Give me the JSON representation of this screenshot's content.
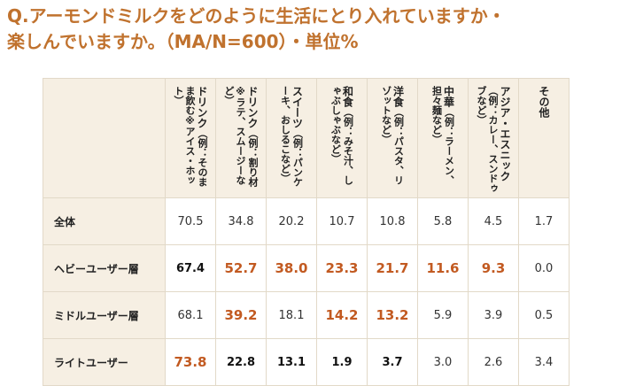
{
  "header": {
    "title_lines": [
      "Q.アーモンドミルクをどのように生活にとり入れていますか・",
      "楽しんでいますか。（MA/N=600）・単位%"
    ]
  },
  "table": {
    "columns": [
      {
        "name": "ドリンク",
        "example": "（例：そのまま飲む※アイス・ホット）"
      },
      {
        "name": "ドリンク",
        "example": "（例：割り材※ラテ、スムージーなど）"
      },
      {
        "name": "スイーツ",
        "example": "（例：パンケーキ、おしるこなど）"
      },
      {
        "name": "和食",
        "example": "（例：みそ汁、しゃぶしゃぶなど）"
      },
      {
        "name": "洋食",
        "example": "（例：パスタ、リゾットなど）"
      },
      {
        "name": "中華",
        "example": "（例：ラーメン、担々麺など）"
      },
      {
        "name": "アジア・エスニック",
        "example": "（例：カレー、スンドゥブなど）"
      },
      {
        "name": "その他",
        "example": ""
      }
    ],
    "rows": [
      {
        "label": "全体",
        "cells": [
          {
            "text": "70.5",
            "style": "plain"
          },
          {
            "text": "34.8",
            "style": "plain"
          },
          {
            "text": "20.2",
            "style": "plain"
          },
          {
            "text": "10.7",
            "style": "plain"
          },
          {
            "text": "10.8",
            "style": "plain"
          },
          {
            "text": "5.8",
            "style": "plain"
          },
          {
            "text": "4.5",
            "style": "plain"
          },
          {
            "text": "1.7",
            "style": "plain"
          }
        ]
      },
      {
        "label": "ヘビーユーザー層",
        "cells": [
          {
            "text": "67.4",
            "style": "bold"
          },
          {
            "text": "52.7",
            "style": "high"
          },
          {
            "text": "38.0",
            "style": "high"
          },
          {
            "text": "23.3",
            "style": "high"
          },
          {
            "text": "21.7",
            "style": "high"
          },
          {
            "text": "11.6",
            "style": "high"
          },
          {
            "text": "9.3",
            "style": "high"
          },
          {
            "text": "0.0",
            "style": "plain"
          }
        ]
      },
      {
        "label": "ミドルユーザー層",
        "cells": [
          {
            "text": "68.1",
            "style": "plain"
          },
          {
            "text": "39.2",
            "style": "high"
          },
          {
            "text": "18.1",
            "style": "plain"
          },
          {
            "text": "14.2",
            "style": "high"
          },
          {
            "text": "13.2",
            "style": "high"
          },
          {
            "text": "5.9",
            "style": "plain"
          },
          {
            "text": "3.9",
            "style": "plain"
          },
          {
            "text": "0.5",
            "style": "plain"
          }
        ]
      },
      {
        "label": "ライトユーザー",
        "cells": [
          {
            "text": "73.8",
            "style": "high"
          },
          {
            "text": "22.8",
            "style": "bold"
          },
          {
            "text": "13.1",
            "style": "bold"
          },
          {
            "text": "1.9",
            "style": "bold"
          },
          {
            "text": "3.7",
            "style": "bold"
          },
          {
            "text": "3.0",
            "style": "plain"
          },
          {
            "text": "2.6",
            "style": "plain"
          },
          {
            "text": "3.4",
            "style": "plain"
          }
        ]
      }
    ]
  }
}
